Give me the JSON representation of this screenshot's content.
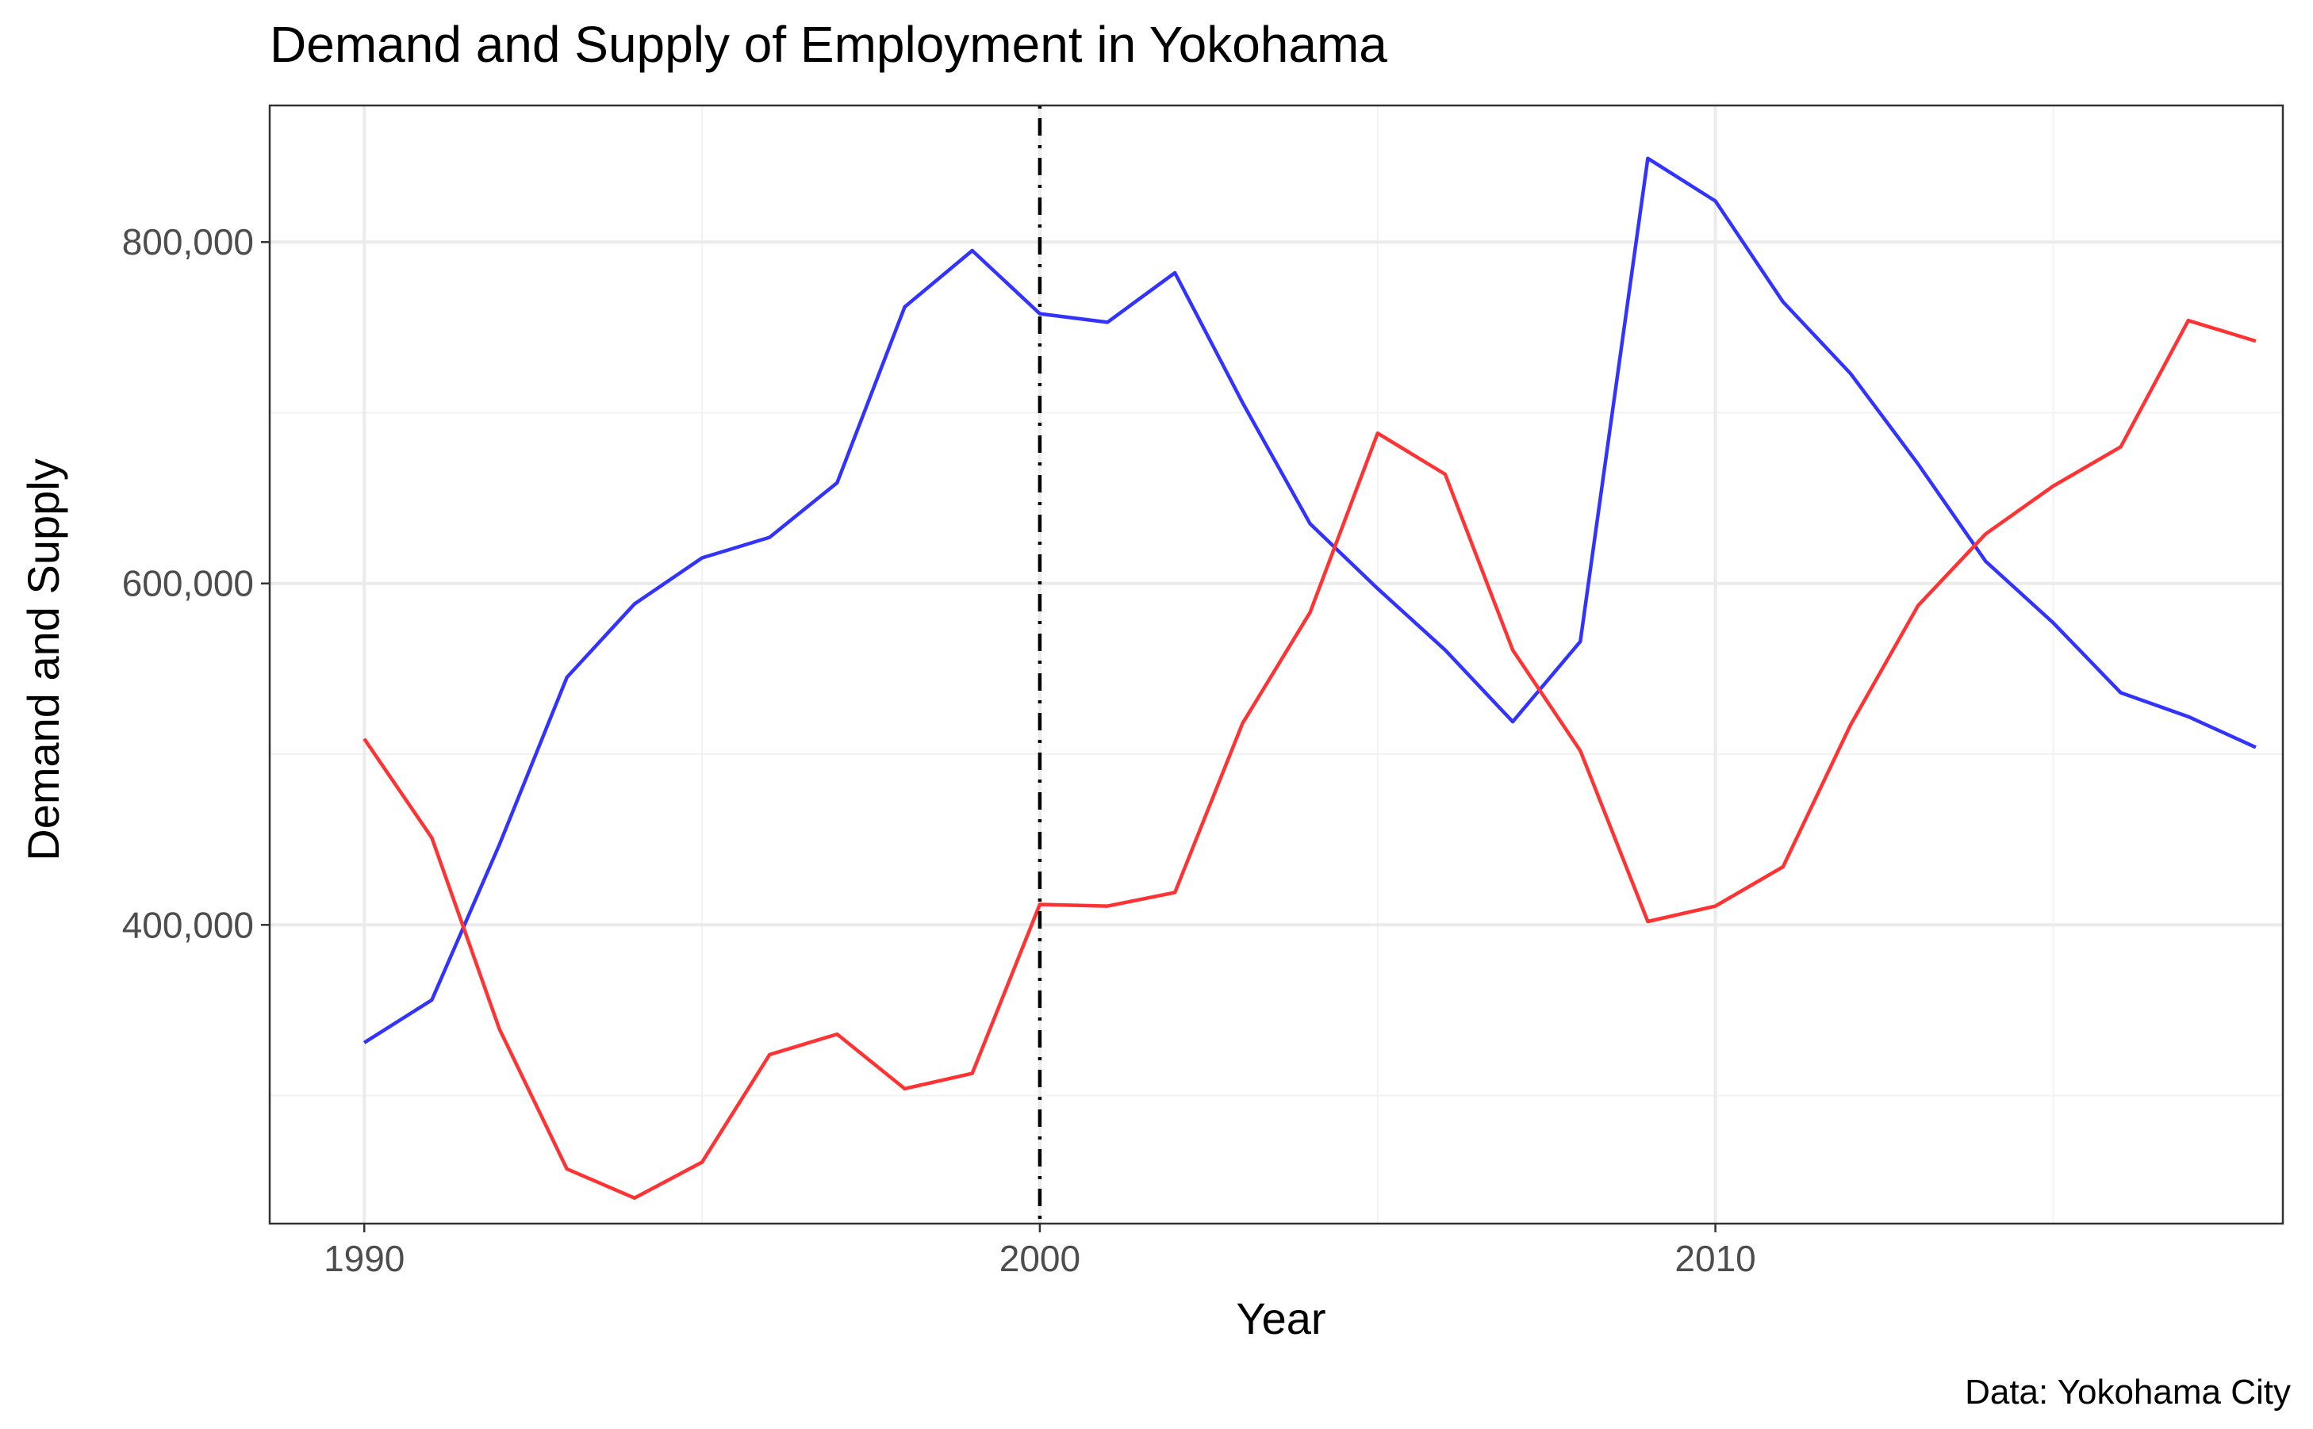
{
  "chart_data": {
    "type": "line",
    "title": "Demand and Supply of Employment in Yokohama",
    "xlabel": "Year",
    "ylabel": "Demand and Supply",
    "caption": "Data: Yokohama City",
    "xlim": [
      1988.6,
      2018.4
    ],
    "ylim": [
      225000,
      880000
    ],
    "x_ticks": [
      1990,
      2000,
      2010
    ],
    "x_tick_labels": [
      "1990",
      "2000",
      "2010"
    ],
    "x_minor_ticks": [
      1995,
      2005,
      2015
    ],
    "y_ticks": [
      400000,
      600000,
      800000
    ],
    "y_tick_labels": [
      "400,000",
      "600,000",
      "800,000"
    ],
    "y_minor_ticks": [
      300000,
      500000,
      700000
    ],
    "grid": true,
    "legend": "none",
    "vline": {
      "x": 2000
    },
    "x": [
      1990,
      1991,
      1992,
      1993,
      1994,
      1995,
      1996,
      1997,
      1998,
      1999,
      2000,
      2001,
      2002,
      2003,
      2004,
      2005,
      2006,
      2007,
      2008,
      2009,
      2010,
      2011,
      2012,
      2013,
      2014,
      2015,
      2016,
      2017,
      2018
    ],
    "series": [
      {
        "color": "#3333ff",
        "values": [
          331000,
          356000,
          447000,
          545000,
          588000,
          615000,
          627000,
          659000,
          762000,
          795000,
          758000,
          753000,
          782000,
          706000,
          635000,
          597000,
          561000,
          519000,
          566000,
          849000,
          824000,
          765000,
          723000,
          670000,
          613000,
          577000,
          536000,
          522000,
          504000
        ]
      },
      {
        "color": "#ff3333",
        "values": [
          509000,
          451000,
          339000,
          257000,
          240000,
          261000,
          324000,
          336000,
          304000,
          313000,
          412000,
          411000,
          419000,
          518000,
          583000,
          688000,
          664000,
          561000,
          502000,
          402000,
          411000,
          434000,
          517000,
          587000,
          629000,
          657000,
          680000,
          754000,
          742000
        ]
      }
    ]
  }
}
